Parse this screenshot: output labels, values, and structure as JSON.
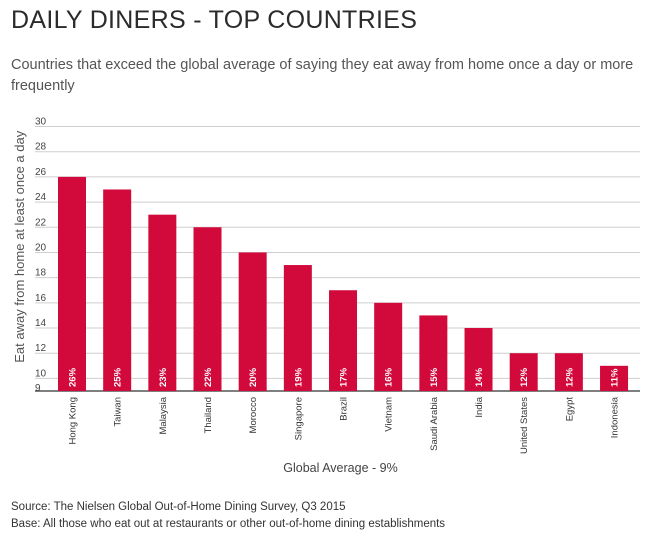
{
  "header": {
    "title": "DAILY DINERS - TOP COUNTRIES",
    "subtitle": "Countries that exceed the global average of saying they eat away from home once a day or more frequently"
  },
  "footer": {
    "source": "Source: The Nielsen Global Out-of-Home Dining Survey, Q3 2015",
    "base": "Base: All those who eat out at restaurants or other out-of-home dining establishments"
  },
  "colors": {
    "bar": "#d20a3c",
    "grid": "#cfcfcf",
    "axis": "#333333"
  },
  "chart_data": {
    "type": "bar",
    "title": "DAILY DINERS - TOP COUNTRIES",
    "xlabel": "Global Average - 9%",
    "ylabel": "Eat away from home at least once a day",
    "ylim": [
      9,
      30
    ],
    "yticks": [
      9,
      10,
      12,
      14,
      16,
      18,
      20,
      22,
      24,
      26,
      28,
      30
    ],
    "grid": true,
    "categories": [
      "Hong Kong",
      "Taiwan",
      "Malaysia",
      "Thailand",
      "Morocco",
      "Singapore",
      "Brazil",
      "Vietnam",
      "Saudi Arabia",
      "India",
      "United States",
      "Egypt",
      "Indonesia"
    ],
    "values": [
      26,
      25,
      23,
      22,
      20,
      19,
      17,
      16,
      15,
      14,
      12,
      12,
      11
    ],
    "data_labels": [
      "26%",
      "25%",
      "23%",
      "22%",
      "20%",
      "19%",
      "17%",
      "16%",
      "15%",
      "14%",
      "12%",
      "12%",
      "11%"
    ]
  }
}
